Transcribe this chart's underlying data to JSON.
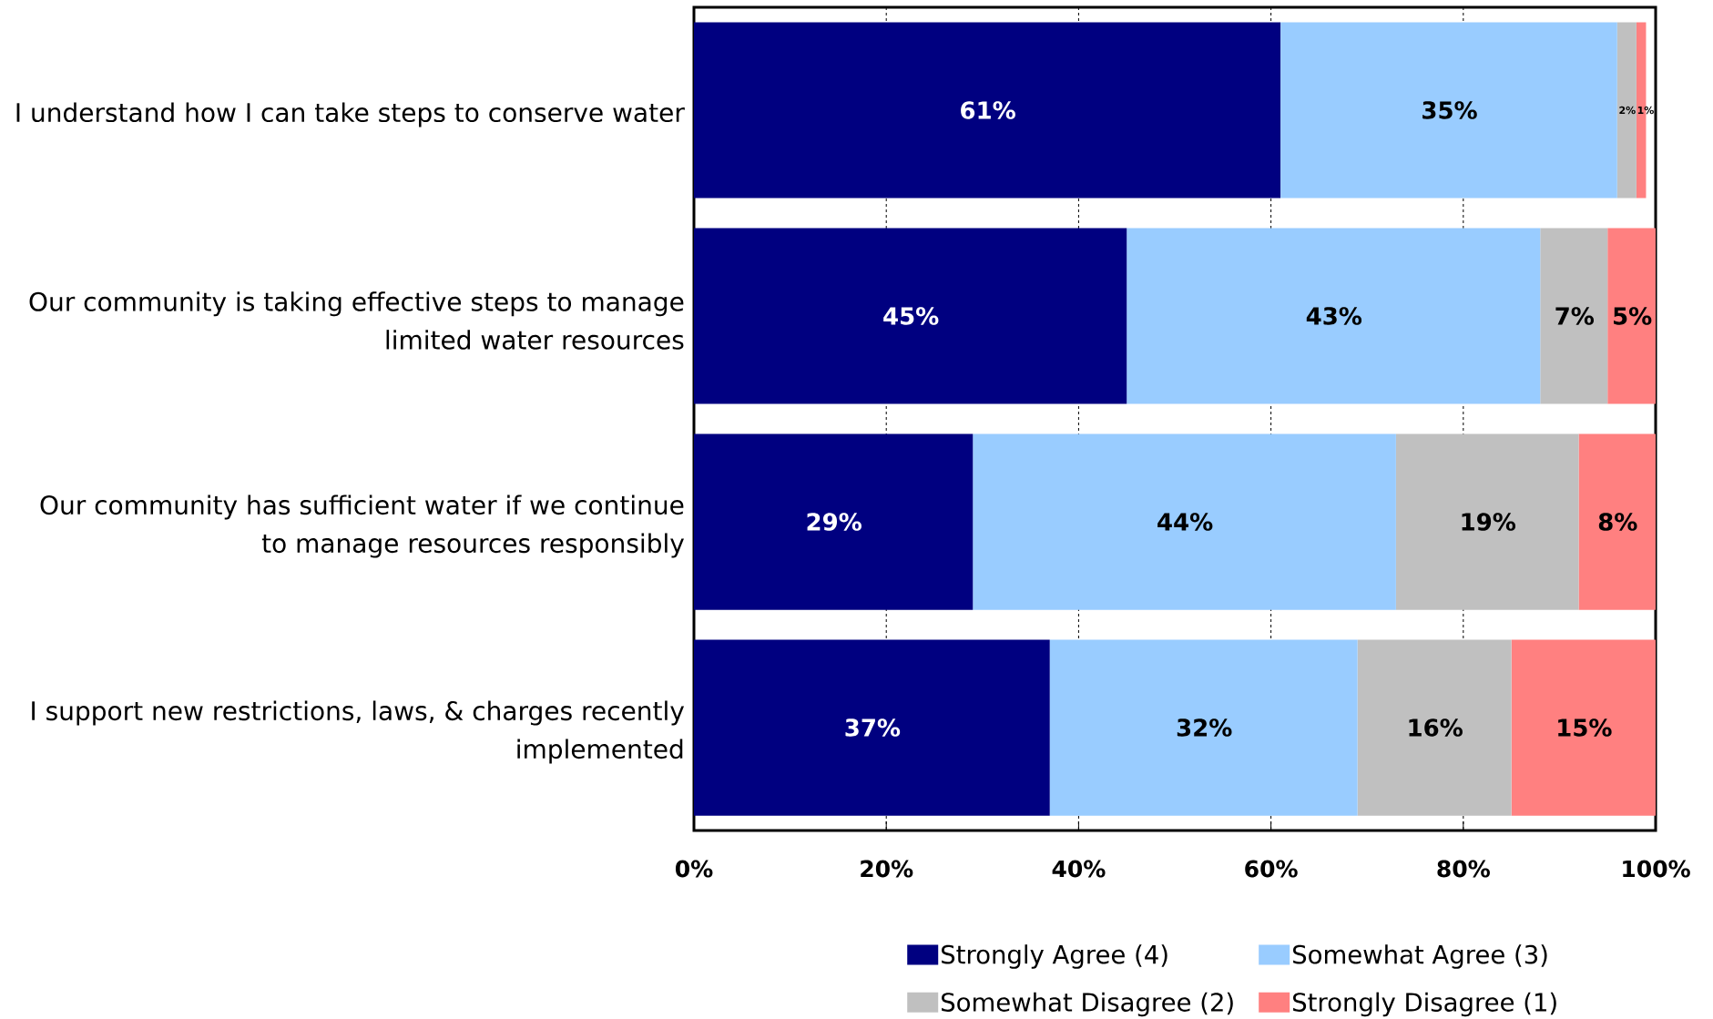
{
  "chart_data": {
    "type": "bar",
    "orientation": "horizontal",
    "stacked": true,
    "categories": [
      "I understand how I can take steps to conserve water",
      "Our community is taking effective steps to manage limited water resources",
      "Our community has sufficient water if we continue to manage resources responsibly",
      "I support new restrictions, laws, & charges recently implemented"
    ],
    "series": [
      {
        "name": "Strongly Agree (4)",
        "color": "#000080",
        "values": [
          61,
          45,
          29,
          37
        ],
        "value_labels": [
          "61%",
          "45%",
          "29%",
          "37%"
        ]
      },
      {
        "name": "Somewhat Agree (3)",
        "color": "#99ccff",
        "values": [
          35,
          43,
          44,
          32
        ],
        "value_labels": [
          "35%",
          "43%",
          "44%",
          "32%"
        ]
      },
      {
        "name": "Somewhat Disagree (2)",
        "color": "#c0c0c0",
        "values": [
          2,
          7,
          19,
          16
        ],
        "value_labels": [
          "2%",
          "7%",
          "19%",
          "16%"
        ]
      },
      {
        "name": "Strongly Disagree (1)",
        "color": "#ff8080",
        "values": [
          1,
          5,
          8,
          15
        ],
        "value_labels": [
          "1%",
          "5%",
          "8%",
          "15%"
        ]
      }
    ],
    "xlim": [
      0,
      100
    ],
    "xticks": [
      {
        "value": 0,
        "label": "0%"
      },
      {
        "value": 20,
        "label": "20%"
      },
      {
        "value": 40,
        "label": "40%"
      },
      {
        "value": 60,
        "label": "60%"
      },
      {
        "value": 80,
        "label": "80%"
      },
      {
        "value": 100,
        "label": "100%"
      }
    ],
    "grid": "x",
    "legend": "bottom"
  }
}
